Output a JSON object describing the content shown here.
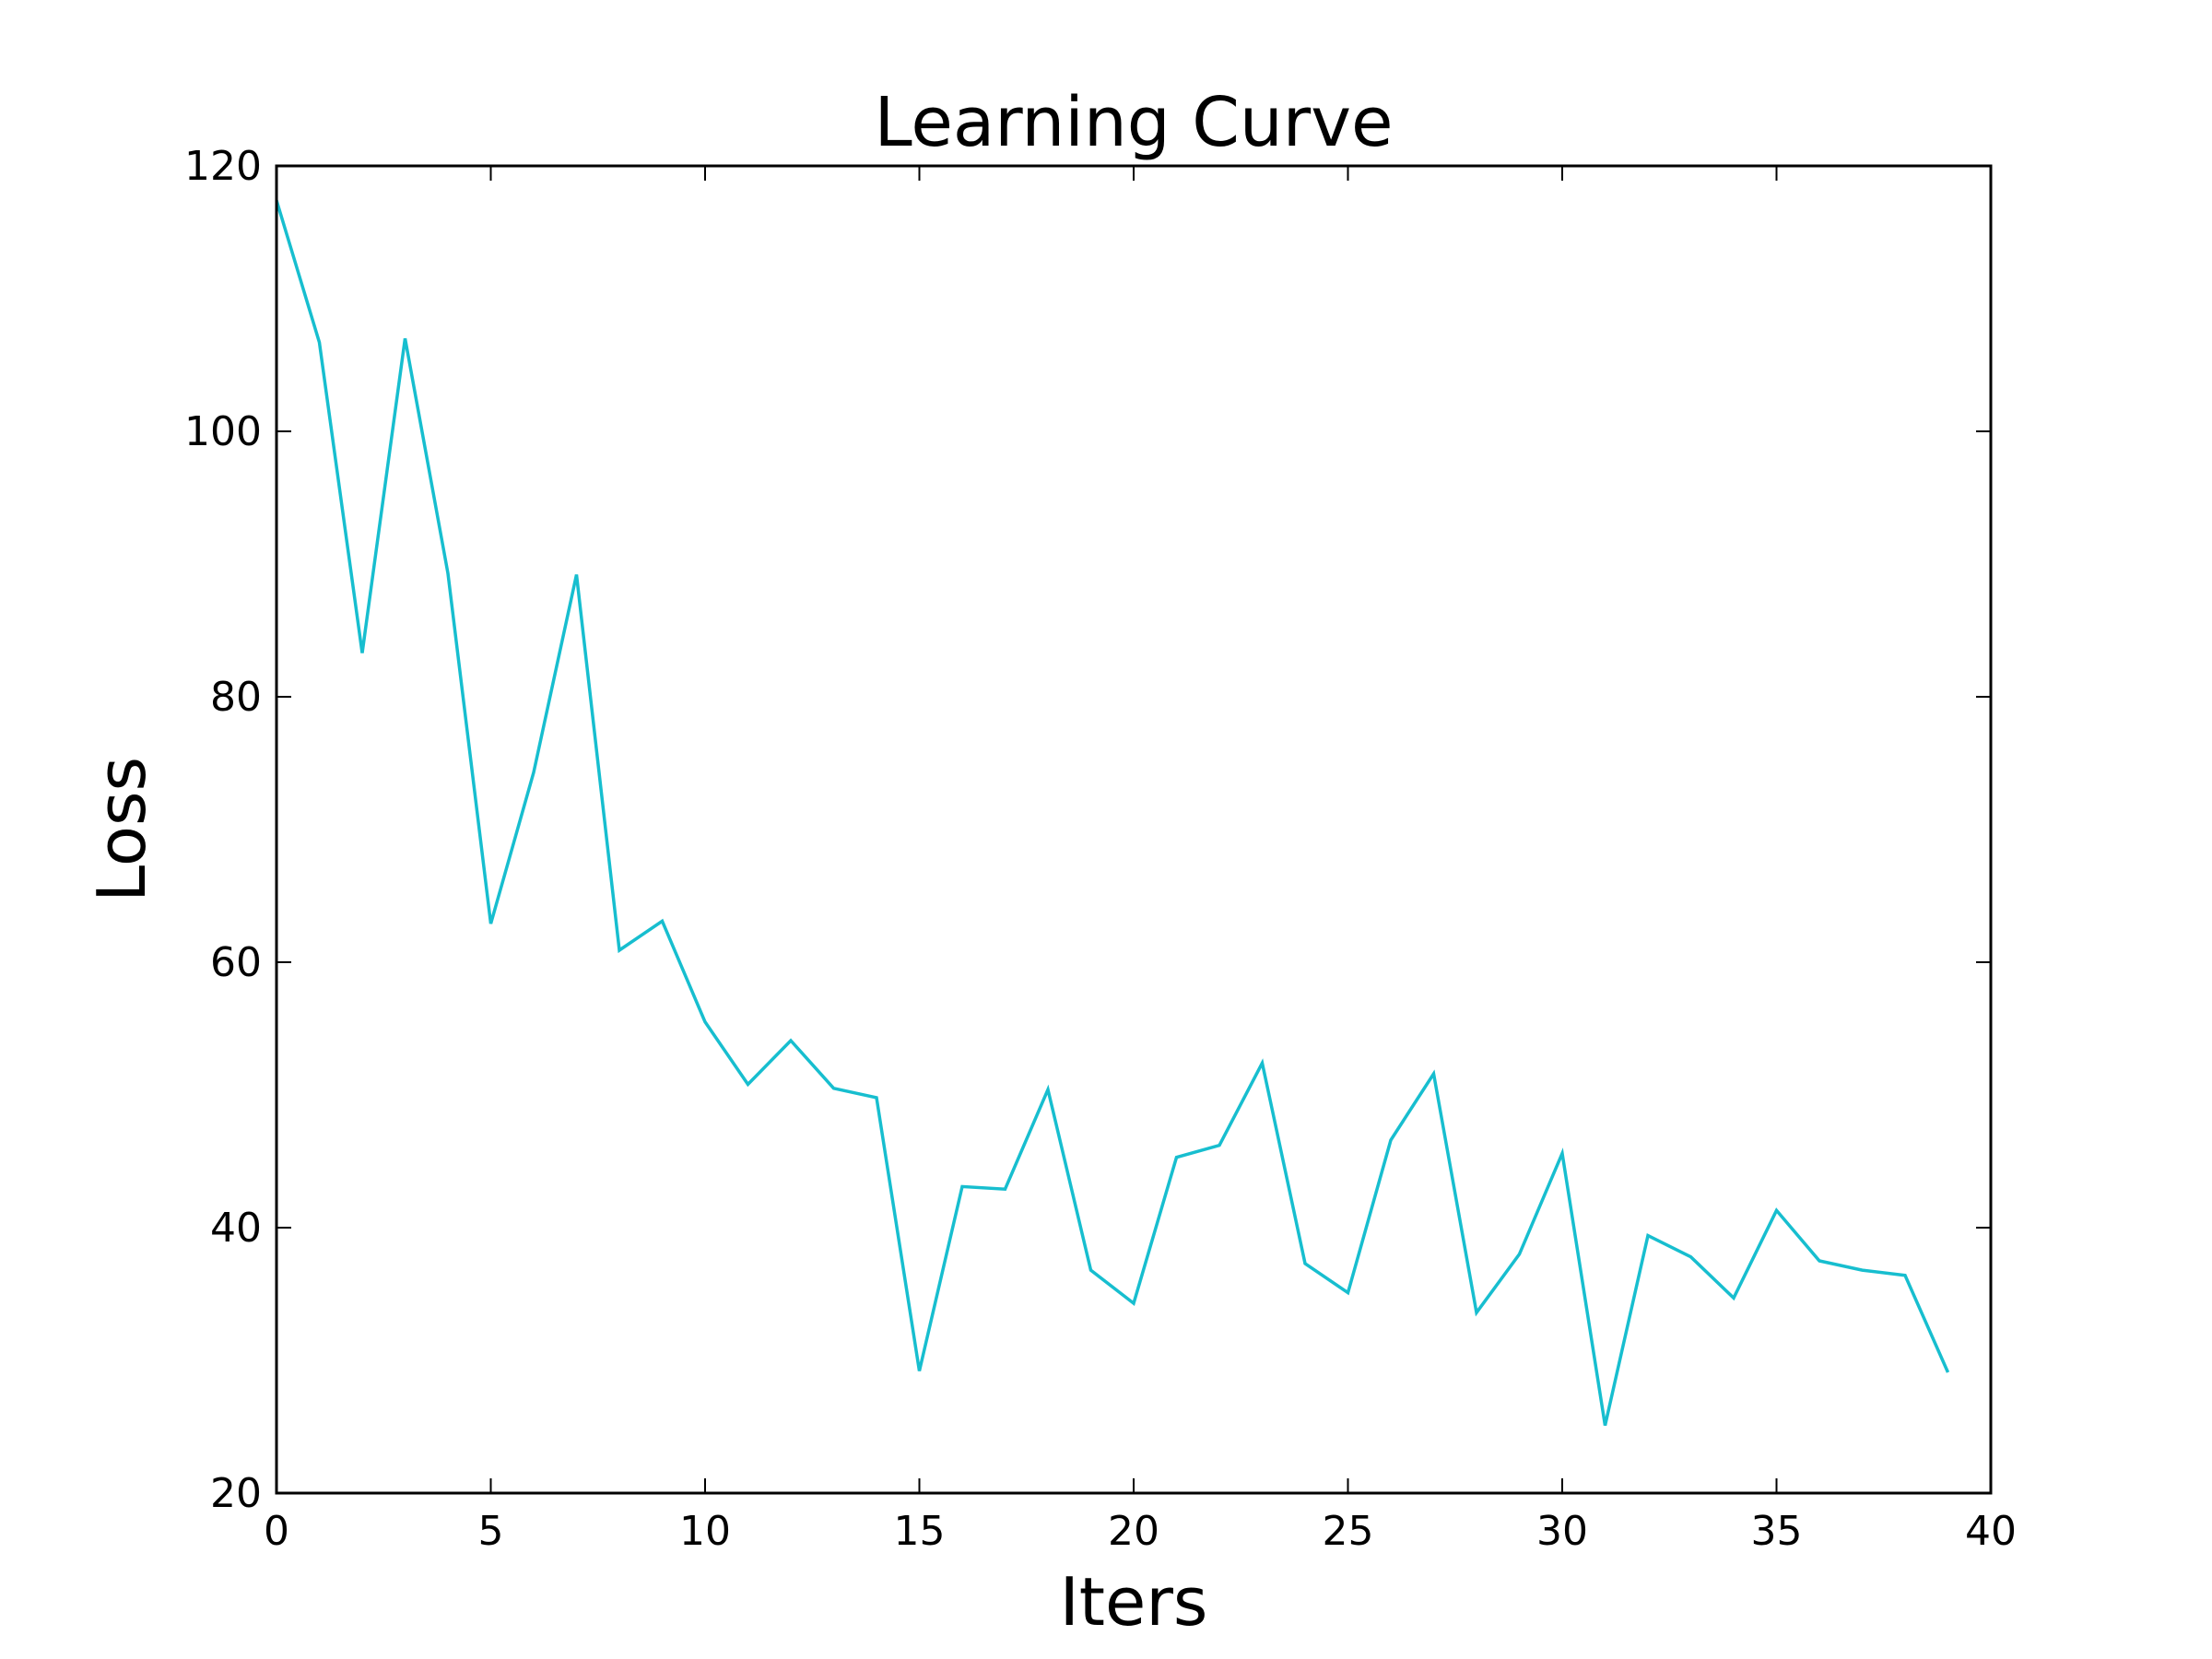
{
  "chart_data": {
    "type": "line",
    "title": "Learning Curve",
    "xlabel": "Iters",
    "ylabel": "Loss",
    "xlim": [
      0,
      40
    ],
    "ylim": [
      20,
      120
    ],
    "xticks": [
      0,
      5,
      10,
      15,
      20,
      25,
      30,
      35,
      40
    ],
    "yticks": [
      20,
      40,
      60,
      80,
      100,
      120
    ],
    "grid": false,
    "legend": "none",
    "series": [
      {
        "color": "#17becf",
        "x": [
          0,
          1,
          2,
          3,
          4,
          5,
          6,
          7,
          8,
          9,
          10,
          11,
          12,
          13,
          14,
          15,
          16,
          17,
          18,
          19,
          20,
          21,
          22,
          23,
          24,
          25,
          26,
          27,
          28,
          29,
          30,
          31,
          32,
          33,
          34,
          35,
          36,
          37,
          38,
          39
        ],
        "y": [
          117.4,
          106.7,
          83.3,
          107.0,
          89.3,
          62.9,
          74.3,
          89.2,
          60.9,
          63.1,
          55.5,
          50.8,
          54.1,
          50.5,
          49.8,
          29.2,
          43.1,
          42.9,
          50.4,
          36.8,
          34.3,
          45.3,
          46.2,
          52.4,
          37.3,
          35.1,
          46.6,
          51.6,
          33.6,
          38.0,
          45.6,
          25.1,
          39.4,
          37.8,
          34.7,
          41.3,
          37.5,
          36.8,
          36.4,
          29.1
        ]
      }
    ]
  }
}
